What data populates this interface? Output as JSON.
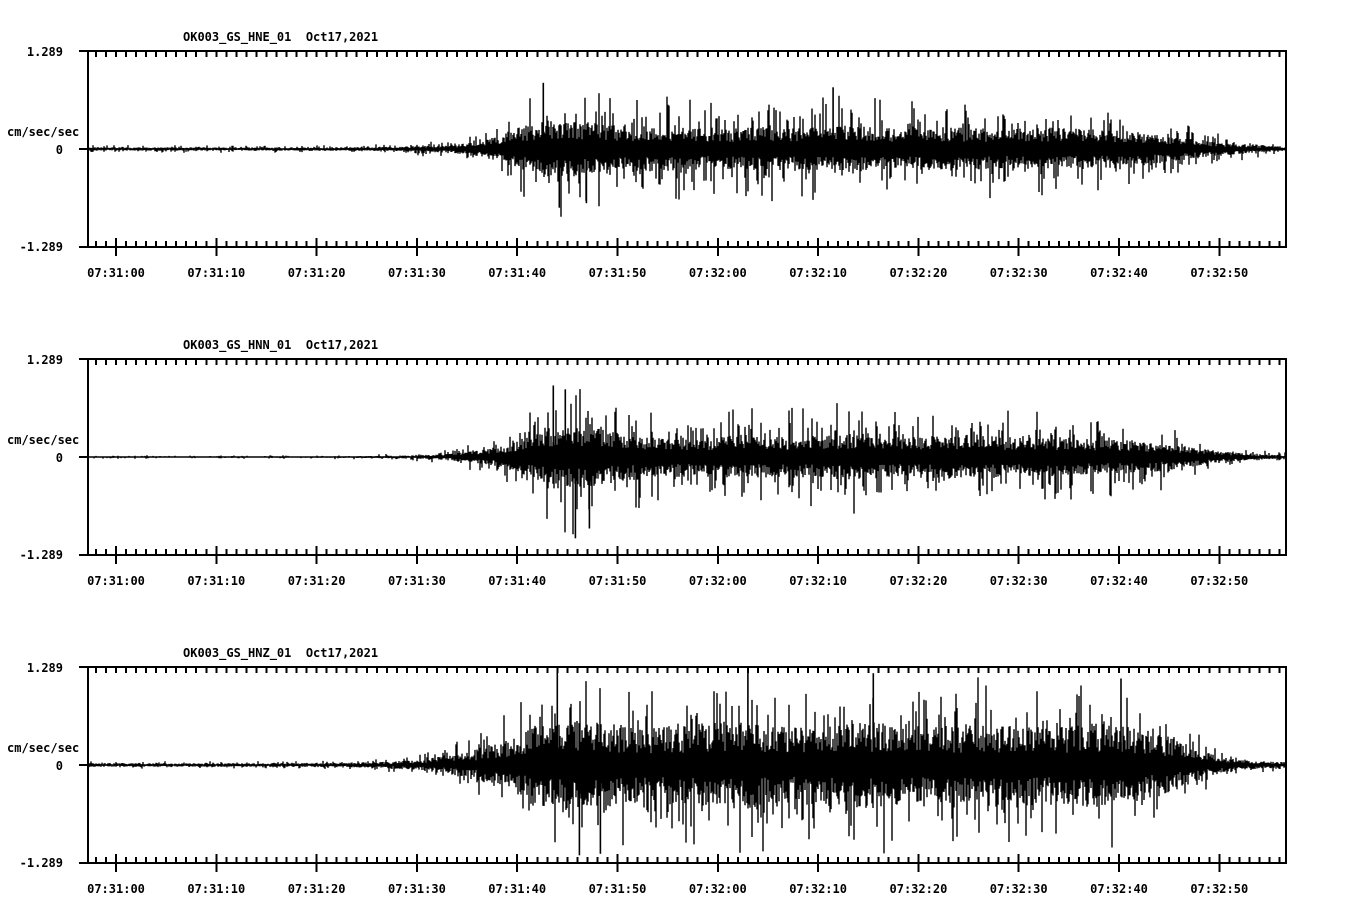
{
  "page": {
    "background": "#ffffff",
    "foreground": "#000000",
    "description": "Three-component strong-motion seismogram record section"
  },
  "chart_data": [
    {
      "type": "line",
      "kind": "seismogram",
      "title": "OK003_GS_HNE_01  Oct17,2021",
      "station_channel": "OK003_GS_HNE_01",
      "date": "Oct17,2021",
      "ylabel": "cm/sec/sec",
      "ylim": [
        -1.289,
        1.289
      ],
      "y_tick_labels": [
        "1.289",
        "0",
        "-1.289"
      ],
      "y_tick_values": [
        1.289,
        0,
        -1.289
      ],
      "x_window": [
        "07:30:57",
        "07:32:57"
      ],
      "x_tick_labels": [
        "07:31:00",
        "07:31:10",
        "07:31:20",
        "07:31:30",
        "07:31:40",
        "07:31:50",
        "07:32:00",
        "07:32:10",
        "07:32:20",
        "07:32:30",
        "07:32:40",
        "07:32:50"
      ],
      "x_minor_tick_seconds": 1,
      "x_major_tick_seconds": 10,
      "envelope_t_amp": [
        [
          -2.8,
          0.05
        ],
        [
          10,
          0.045
        ],
        [
          20,
          0.05
        ],
        [
          27,
          0.06
        ],
        [
          31,
          0.09
        ],
        [
          34,
          0.13
        ],
        [
          37,
          0.28
        ],
        [
          40,
          0.55
        ],
        [
          43,
          0.85
        ],
        [
          46,
          0.8
        ],
        [
          50,
          0.68
        ],
        [
          56,
          0.62
        ],
        [
          60,
          0.57
        ],
        [
          64,
          0.65
        ],
        [
          68,
          0.6
        ],
        [
          73,
          0.68
        ],
        [
          78,
          0.6
        ],
        [
          83,
          0.63
        ],
        [
          88,
          0.58
        ],
        [
          93,
          0.62
        ],
        [
          97,
          0.58
        ],
        [
          101,
          0.55
        ],
        [
          104,
          0.45
        ],
        [
          107,
          0.32
        ],
        [
          110,
          0.2
        ],
        [
          113,
          0.12
        ],
        [
          116.6,
          0.07
        ]
      ],
      "notable_spikes": [
        {
          "t": 42.6,
          "amp": 0.88
        },
        {
          "t": 44.2,
          "amp": -0.78
        },
        {
          "t": 71.5,
          "amp": 0.82
        },
        {
          "t": 46.9,
          "amp": -0.72
        }
      ]
    },
    {
      "type": "line",
      "kind": "seismogram",
      "title": "OK003_GS_HNN_01  Oct17,2021",
      "station_channel": "OK003_GS_HNN_01",
      "date": "Oct17,2021",
      "ylabel": "cm/sec/sec",
      "ylim": [
        -1.289,
        1.289
      ],
      "y_tick_labels": [
        "1.289",
        "0",
        "-1.289"
      ],
      "y_tick_values": [
        1.289,
        0,
        -1.289
      ],
      "x_window": [
        "07:30:57",
        "07:32:57"
      ],
      "x_tick_labels": [
        "07:31:00",
        "07:31:10",
        "07:31:20",
        "07:31:30",
        "07:31:40",
        "07:31:50",
        "07:32:00",
        "07:32:10",
        "07:32:20",
        "07:32:30",
        "07:32:40",
        "07:32:50"
      ],
      "x_minor_tick_seconds": 1,
      "x_major_tick_seconds": 10,
      "envelope_t_amp": [
        [
          -2.8,
          0.022
        ],
        [
          15,
          0.022
        ],
        [
          25,
          0.03
        ],
        [
          30,
          0.05
        ],
        [
          33,
          0.09
        ],
        [
          36,
          0.18
        ],
        [
          39,
          0.35
        ],
        [
          42,
          0.7
        ],
        [
          44,
          0.95
        ],
        [
          47,
          0.9
        ],
        [
          50,
          0.72
        ],
        [
          54,
          0.6
        ],
        [
          58,
          0.55
        ],
        [
          62,
          0.65
        ],
        [
          66,
          0.58
        ],
        [
          70,
          0.62
        ],
        [
          74,
          0.68
        ],
        [
          78,
          0.58
        ],
        [
          82,
          0.62
        ],
        [
          86,
          0.66
        ],
        [
          90,
          0.55
        ],
        [
          94,
          0.58
        ],
        [
          98,
          0.52
        ],
        [
          102,
          0.48
        ],
        [
          105,
          0.38
        ],
        [
          108,
          0.25
        ],
        [
          111,
          0.14
        ],
        [
          114,
          0.08
        ],
        [
          116.6,
          0.055
        ]
      ],
      "notable_spikes": [
        {
          "t": 43.6,
          "amp": 0.95
        },
        {
          "t": 45.8,
          "amp": -1.08
        },
        {
          "t": 47.2,
          "amp": -0.95
        },
        {
          "t": 44.8,
          "amp": 0.9
        }
      ]
    },
    {
      "type": "line",
      "kind": "seismogram",
      "title": "OK003_GS_HNZ_01  Oct17,2021",
      "station_channel": "OK003_GS_HNZ_01",
      "date": "Oct17,2021",
      "ylabel": "cm/sec/sec",
      "ylim": [
        -1.289,
        1.289
      ],
      "y_tick_labels": [
        "1.289",
        "0",
        "-1.289"
      ],
      "y_tick_values": [
        1.289,
        0,
        -1.289
      ],
      "x_window": [
        "07:30:57",
        "07:32:57"
      ],
      "x_tick_labels": [
        "07:31:00",
        "07:31:10",
        "07:31:20",
        "07:31:30",
        "07:31:40",
        "07:31:50",
        "07:32:00",
        "07:32:10",
        "07:32:20",
        "07:32:30",
        "07:32:40",
        "07:32:50"
      ],
      "x_minor_tick_seconds": 1,
      "x_major_tick_seconds": 10,
      "envelope_t_amp": [
        [
          -2.8,
          0.045
        ],
        [
          12,
          0.045
        ],
        [
          22,
          0.055
        ],
        [
          27,
          0.08
        ],
        [
          30,
          0.13
        ],
        [
          33,
          0.22
        ],
        [
          36,
          0.4
        ],
        [
          39,
          0.65
        ],
        [
          42,
          1.0
        ],
        [
          45,
          1.15
        ],
        [
          48,
          1.05
        ],
        [
          52,
          0.95
        ],
        [
          56,
          1.0
        ],
        [
          60,
          1.05
        ],
        [
          63,
          1.15
        ],
        [
          66,
          0.95
        ],
        [
          70,
          1.0
        ],
        [
          74,
          1.1
        ],
        [
          78,
          1.05
        ],
        [
          82,
          0.95
        ],
        [
          86,
          1.05
        ],
        [
          90,
          0.95
        ],
        [
          94,
          1.0
        ],
        [
          98,
          1.05
        ],
        [
          101,
          0.95
        ],
        [
          104,
          0.8
        ],
        [
          106,
          0.6
        ],
        [
          108,
          0.4
        ],
        [
          110,
          0.22
        ],
        [
          112,
          0.12
        ],
        [
          116.6,
          0.075
        ]
      ],
      "notable_spikes": [
        {
          "t": 44.0,
          "amp": 1.26
        },
        {
          "t": 46.2,
          "amp": -1.2
        },
        {
          "t": 63.0,
          "amp": 1.27
        },
        {
          "t": 75.5,
          "amp": 1.22
        },
        {
          "t": 100.2,
          "amp": 1.15
        },
        {
          "t": 48.3,
          "amp": -1.18
        }
      ]
    }
  ]
}
